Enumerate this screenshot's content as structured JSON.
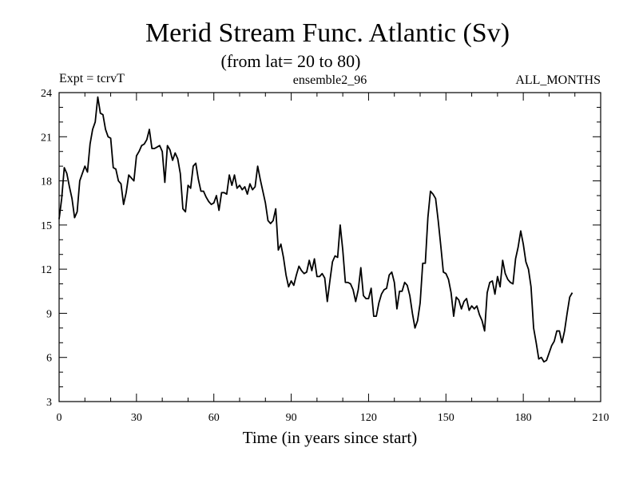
{
  "chart_data": {
    "type": "line",
    "title": "Merid Stream Func. Atlantic (Sv)",
    "subtitle": "(from lat= 20 to 80)",
    "header_left": "Expt = tcrvT",
    "header_center": "ensemble2_96",
    "header_right": "ALL_MONTHS",
    "xlabel": "Time (in years since start)",
    "ylabel": "",
    "xlim": [
      0,
      210
    ],
    "ylim": [
      3,
      24
    ],
    "xticks": [
      0,
      30,
      60,
      90,
      120,
      150,
      180,
      210
    ],
    "yticks": [
      3,
      6,
      9,
      12,
      15,
      18,
      21,
      24
    ],
    "x_minor_step": 10,
    "y_minor_step": 1,
    "grid": false,
    "line_color": "#000000",
    "series": [
      {
        "x": [
          0,
          1,
          2,
          3,
          4,
          5,
          6,
          7,
          8,
          9,
          10,
          11,
          12,
          13,
          14,
          15,
          16,
          17,
          18,
          19,
          20,
          21,
          22,
          23,
          24,
          25,
          26,
          27,
          28,
          29,
          30,
          31,
          32,
          33,
          34,
          35,
          36,
          37,
          38,
          39,
          40,
          41,
          42,
          43,
          44,
          45,
          46,
          47,
          48,
          49,
          50,
          51,
          52,
          53,
          54,
          55,
          56,
          57,
          58,
          59,
          60,
          61,
          62,
          63,
          64,
          65,
          66,
          67,
          68,
          69,
          70,
          71,
          72,
          73,
          74,
          75,
          76,
          77,
          78,
          79,
          80,
          81,
          82,
          83,
          84,
          85,
          86,
          87,
          88,
          89,
          90,
          91,
          92,
          93,
          94,
          95,
          96,
          97,
          98,
          99,
          100,
          101,
          102,
          103,
          104,
          105,
          106,
          107,
          108,
          109,
          110,
          111,
          112,
          113,
          114,
          115,
          116,
          117,
          118,
          119,
          120,
          121,
          122,
          123,
          124,
          125,
          126,
          127,
          128,
          129,
          130,
          131,
          132,
          133,
          134,
          135,
          136,
          137,
          138,
          139,
          140,
          141,
          142,
          143,
          144,
          145,
          146,
          147,
          148,
          149,
          150,
          151,
          152,
          153,
          154,
          155,
          156,
          157,
          158,
          159,
          160,
          161,
          162,
          163,
          164,
          165,
          166,
          167,
          168,
          169,
          170,
          171,
          172,
          173,
          174,
          175,
          176,
          177,
          178,
          179,
          180,
          181,
          182,
          183,
          184,
          185,
          186,
          187,
          188,
          189,
          190,
          191,
          192,
          193,
          194,
          195,
          196,
          197,
          198,
          199
        ],
        "values": [
          15.4,
          16.8,
          18.9,
          18.5,
          17.6,
          16.8,
          15.5,
          15.9,
          18.0,
          18.5,
          19.0,
          18.6,
          20.5,
          21.5,
          22.0,
          23.7,
          22.6,
          22.5,
          21.5,
          21.0,
          20.9,
          18.9,
          18.8,
          18.0,
          17.8,
          16.4,
          17.2,
          18.4,
          18.2,
          18.0,
          19.7,
          20.0,
          20.4,
          20.5,
          20.8,
          21.5,
          20.2,
          20.2,
          20.3,
          20.4,
          20.0,
          17.9,
          20.4,
          20.1,
          19.4,
          19.9,
          19.5,
          18.5,
          16.1,
          15.9,
          17.7,
          17.5,
          19.0,
          19.2,
          18.1,
          17.3,
          17.3,
          16.9,
          16.6,
          16.4,
          16.5,
          17.0,
          16.0,
          17.2,
          17.2,
          17.1,
          18.4,
          17.7,
          18.4,
          17.5,
          17.7,
          17.4,
          17.6,
          17.1,
          17.8,
          17.4,
          17.6,
          19.0,
          18.1,
          17.3,
          16.5,
          15.3,
          15.1,
          15.3,
          16.1,
          13.3,
          13.7,
          12.8,
          11.6,
          10.8,
          11.2,
          10.9,
          11.6,
          12.2,
          11.9,
          11.7,
          11.8,
          12.6,
          11.9,
          12.7,
          11.5,
          11.5,
          11.7,
          11.4,
          9.8,
          11.2,
          12.5,
          12.9,
          12.8,
          15.0,
          13.3,
          11.1,
          11.1,
          11.0,
          10.6,
          9.8,
          10.6,
          12.1,
          10.2,
          10.0,
          10.0,
          10.7,
          8.8,
          8.8,
          9.7,
          10.3,
          10.6,
          10.7,
          11.6,
          11.8,
          11.1,
          9.3,
          10.5,
          10.5,
          11.1,
          10.9,
          10.2,
          9.0,
          8.0,
          8.5,
          9.7,
          12.4,
          12.4,
          15.5,
          17.3,
          17.1,
          16.8,
          15.3,
          13.6,
          11.8,
          11.7,
          11.3,
          10.4,
          8.8,
          10.1,
          9.9,
          9.3,
          9.8,
          10.0,
          9.2,
          9.5,
          9.3,
          9.5,
          8.9,
          8.5,
          7.8,
          10.4,
          11.1,
          11.2,
          10.3,
          11.5,
          10.8,
          12.6,
          11.7,
          11.3,
          11.1,
          11.0,
          12.7,
          13.5,
          14.6,
          13.7,
          12.5,
          12.0,
          10.8,
          8.0,
          7.0,
          5.9,
          6.0,
          5.7,
          5.8,
          6.3,
          6.8,
          7.1,
          7.8,
          7.8,
          7.0,
          7.8,
          9.0,
          10.1,
          10.4
        ]
      }
    ]
  }
}
